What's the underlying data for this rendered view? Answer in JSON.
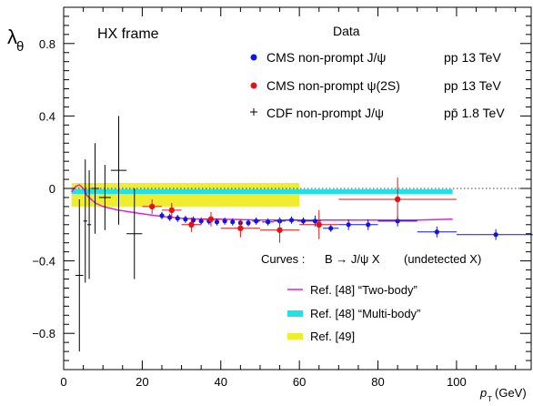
{
  "chart_data": {
    "type": "scatter",
    "ylabel": "λθ",
    "ylabel_main": "λ",
    "ylabel_sub": "θ",
    "xlabel_main": "p",
    "xlabel_sub": "T",
    "xlabel_unit": "(GeV)",
    "xlim": [
      0,
      119
    ],
    "ylim": [
      -1.0,
      1.0
    ],
    "xticks": [
      0,
      20,
      40,
      60,
      80,
      100
    ],
    "yticks": [
      -0.8,
      -0.4,
      0,
      0.4,
      0.8
    ],
    "ytick_labels": [
      "−0.8",
      "−0.4",
      "0",
      "0.4",
      "0.8"
    ],
    "frame_label": "HX frame",
    "legend_title": "Data",
    "curves_title": "Curves :",
    "curves_process": "B → J/ψ X",
    "curves_note": "(undetected X)",
    "series": [
      {
        "name": "CMS non-prompt J/ψ",
        "energy": "pp 13 TeV",
        "color": "#1414e0",
        "marker": "circle",
        "points": [
          {
            "x": 25,
            "xerr": 0.5,
            "y": -0.15,
            "yerr": 0.02
          },
          {
            "x": 27,
            "xerr": 0.5,
            "y": -0.16,
            "yerr": 0.02
          },
          {
            "x": 29,
            "xerr": 0.5,
            "y": -0.165,
            "yerr": 0.02
          },
          {
            "x": 31,
            "xerr": 0.5,
            "y": -0.17,
            "yerr": 0.02
          },
          {
            "x": 33,
            "xerr": 0.5,
            "y": -0.175,
            "yerr": 0.02
          },
          {
            "x": 35,
            "xerr": 0.5,
            "y": -0.18,
            "yerr": 0.02
          },
          {
            "x": 37,
            "xerr": 0.5,
            "y": -0.18,
            "yerr": 0.02
          },
          {
            "x": 39,
            "xerr": 0.5,
            "y": -0.185,
            "yerr": 0.02
          },
          {
            "x": 41,
            "xerr": 0.5,
            "y": -0.18,
            "yerr": 0.02
          },
          {
            "x": 43,
            "xerr": 0.5,
            "y": -0.185,
            "yerr": 0.02
          },
          {
            "x": 45,
            "xerr": 0.5,
            "y": -0.19,
            "yerr": 0.02
          },
          {
            "x": 47,
            "xerr": 0.5,
            "y": -0.19,
            "yerr": 0.02
          },
          {
            "x": 49,
            "xerr": 1.0,
            "y": -0.18,
            "yerr": 0.02
          },
          {
            "x": 52,
            "xerr": 1.5,
            "y": -0.185,
            "yerr": 0.02
          },
          {
            "x": 55,
            "xerr": 1.5,
            "y": -0.18,
            "yerr": 0.02
          },
          {
            "x": 58,
            "xerr": 1.5,
            "y": -0.175,
            "yerr": 0.02
          },
          {
            "x": 61,
            "xerr": 1.5,
            "y": -0.18,
            "yerr": 0.02
          },
          {
            "x": 64,
            "xerr": 1.5,
            "y": -0.18,
            "yerr": 0.03
          },
          {
            "x": 68,
            "xerr": 2.0,
            "y": -0.22,
            "yerr": 0.02
          },
          {
            "x": 72.5,
            "xerr": 2.5,
            "y": -0.2,
            "yerr": 0.03
          },
          {
            "x": 77.5,
            "xerr": 2.5,
            "y": -0.2,
            "yerr": 0.03
          },
          {
            "x": 85,
            "xerr": 5.0,
            "y": -0.18,
            "yerr": 0.03
          },
          {
            "x": 95,
            "xerr": 5.0,
            "y": -0.24,
            "yerr": 0.03
          },
          {
            "x": 110,
            "xerr": 10.0,
            "y": -0.255,
            "yerr": 0.03
          }
        ]
      },
      {
        "name": "CMS non-prompt ψ(2S)",
        "energy": "pp 13 TeV",
        "color": "#e01414",
        "marker": "circle",
        "points": [
          {
            "x": 22.5,
            "xerr": 2.5,
            "y": -0.1,
            "yerr": 0.04
          },
          {
            "x": 27.5,
            "xerr": 2.5,
            "y": -0.12,
            "yerr": 0.04
          },
          {
            "x": 32.5,
            "xerr": 2.5,
            "y": -0.2,
            "yerr": 0.04
          },
          {
            "x": 37.5,
            "xerr": 2.5,
            "y": -0.17,
            "yerr": 0.04
          },
          {
            "x": 45,
            "xerr": 5.0,
            "y": -0.22,
            "yerr": 0.05
          },
          {
            "x": 55,
            "xerr": 5.0,
            "y": -0.23,
            "yerr": 0.07
          },
          {
            "x": 65,
            "xerr": 5.0,
            "y": -0.2,
            "yerr": 0.08
          },
          {
            "x": 85,
            "xerr": 15.0,
            "y": -0.06,
            "yerr": 0.12
          }
        ]
      },
      {
        "name": "CDF non-prompt J/ψ",
        "energy": "pp̄ 1.8 TeV",
        "color": "#000000",
        "marker": "none",
        "points": [
          {
            "x": 4,
            "xerr": 1.0,
            "y": -0.48,
            "yerr": 0.42
          },
          {
            "x": 5.5,
            "xerr": 0.5,
            "y": -0.18,
            "yerr": 0.34
          },
          {
            "x": 6.5,
            "xerr": 0.5,
            "y": -0.2,
            "yerr": 0.3
          },
          {
            "x": 8,
            "xerr": 1.0,
            "y": 0.0,
            "yerr": 0.25
          },
          {
            "x": 10.5,
            "xerr": 1.5,
            "y": -0.05,
            "yerr": 0.18
          },
          {
            "x": 14,
            "xerr": 2.0,
            "y": 0.1,
            "yerr": 0.3
          },
          {
            "x": 18,
            "xerr": 2.0,
            "y": -0.25,
            "yerr": 0.25
          }
        ]
      }
    ],
    "curves": [
      {
        "name": "Ref. [48] “Two-body”",
        "color": "#e020e0",
        "type": "line",
        "x": [
          2,
          3,
          4,
          5,
          6,
          7,
          8,
          10,
          12,
          14,
          17,
          20,
          25,
          30,
          35,
          40,
          50,
          60,
          70,
          80,
          90,
          99
        ],
        "y": [
          -0.02,
          0.01,
          0.02,
          0.0,
          -0.04,
          -0.06,
          -0.08,
          -0.1,
          -0.11,
          -0.12,
          -0.13,
          -0.14,
          -0.155,
          -0.165,
          -0.17,
          -0.17,
          -0.175,
          -0.175,
          -0.175,
          -0.175,
          -0.175,
          -0.17
        ]
      },
      {
        "name": "Ref. [48] “Multi-body”",
        "color": "#20e0e8",
        "type": "band",
        "x": [
          2,
          99
        ],
        "ylow": -0.03,
        "yhigh": -0.005
      },
      {
        "name": "Ref. [49]",
        "color": "#f0ec30",
        "type": "band",
        "x": [
          2,
          60
        ],
        "ylow": -0.1,
        "yhigh": 0.03
      }
    ]
  }
}
